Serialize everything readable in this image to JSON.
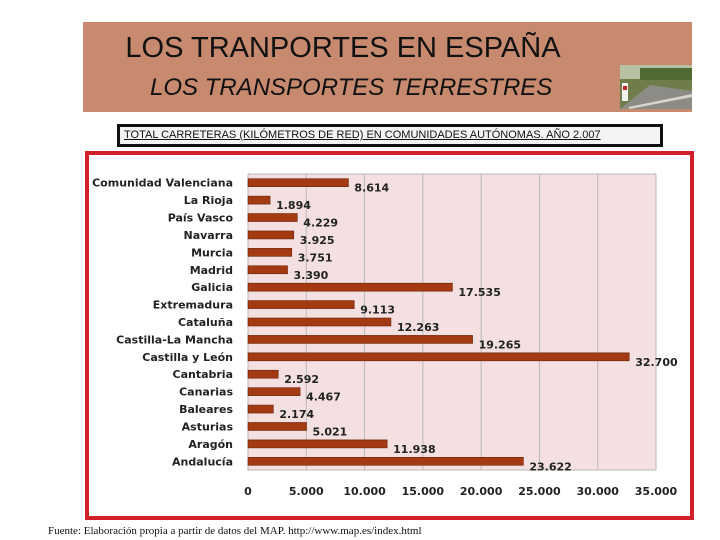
{
  "slide": {
    "title": "LOS TRANPORTES EN ESPAÑA",
    "subtitle": "LOS TRANSPORTES TERRESTRES",
    "chart_caption": "TOTAL CARRETERAS (KILÓMETROS DE RED) EN COMUNIDADES AUTÓNOMAS. AÑO 2.007",
    "source_note": "Fuente: Elaboración propia a partir de datos del MAP. http://www.map.es/index.html",
    "banner_color": "#c88a6f",
    "frame_color": "#d1202a"
  },
  "chart_data": {
    "type": "bar",
    "orientation": "horizontal",
    "title": "TOTAL CARRETERAS (KILÓMETROS DE RED) EN COMUNIDADES AUTÓNOMAS. AÑO 2.007",
    "categories": [
      "Comunidad Valenciana",
      "La Rioja",
      "País Vasco",
      "Navarra",
      "Murcia",
      "Madrid",
      "Galicia",
      "Extremadura",
      "Cataluña",
      "Castilla-La Mancha",
      "Castilla y León",
      "Cantabria",
      "Canarias",
      "Baleares",
      "Asturias",
      "Aragón",
      "Andalucía"
    ],
    "values": [
      8614,
      1894,
      4229,
      3925,
      3751,
      3390,
      17535,
      9113,
      12263,
      19265,
      32700,
      2592,
      4467,
      2174,
      5021,
      11938,
      23622
    ],
    "value_labels": [
      "8.614",
      "1.894",
      "4.229",
      "3.925",
      "3.751",
      "3.390",
      "17.535",
      "9.113",
      "12.263",
      "19.265",
      "32.700",
      "2.592",
      "4.467",
      "2.174",
      "5.021",
      "11.938",
      "23.622"
    ],
    "xlim": [
      0,
      35000
    ],
    "x_ticks": [
      0,
      5000,
      10000,
      15000,
      20000,
      25000,
      30000,
      35000
    ],
    "x_tick_labels": [
      "0",
      "5.000",
      "10.000",
      "15.000",
      "20.000",
      "25.000",
      "30.000",
      "35.000"
    ],
    "grid": true,
    "bar_color": "#a33a12",
    "plot_background": "#f4e0e0"
  }
}
